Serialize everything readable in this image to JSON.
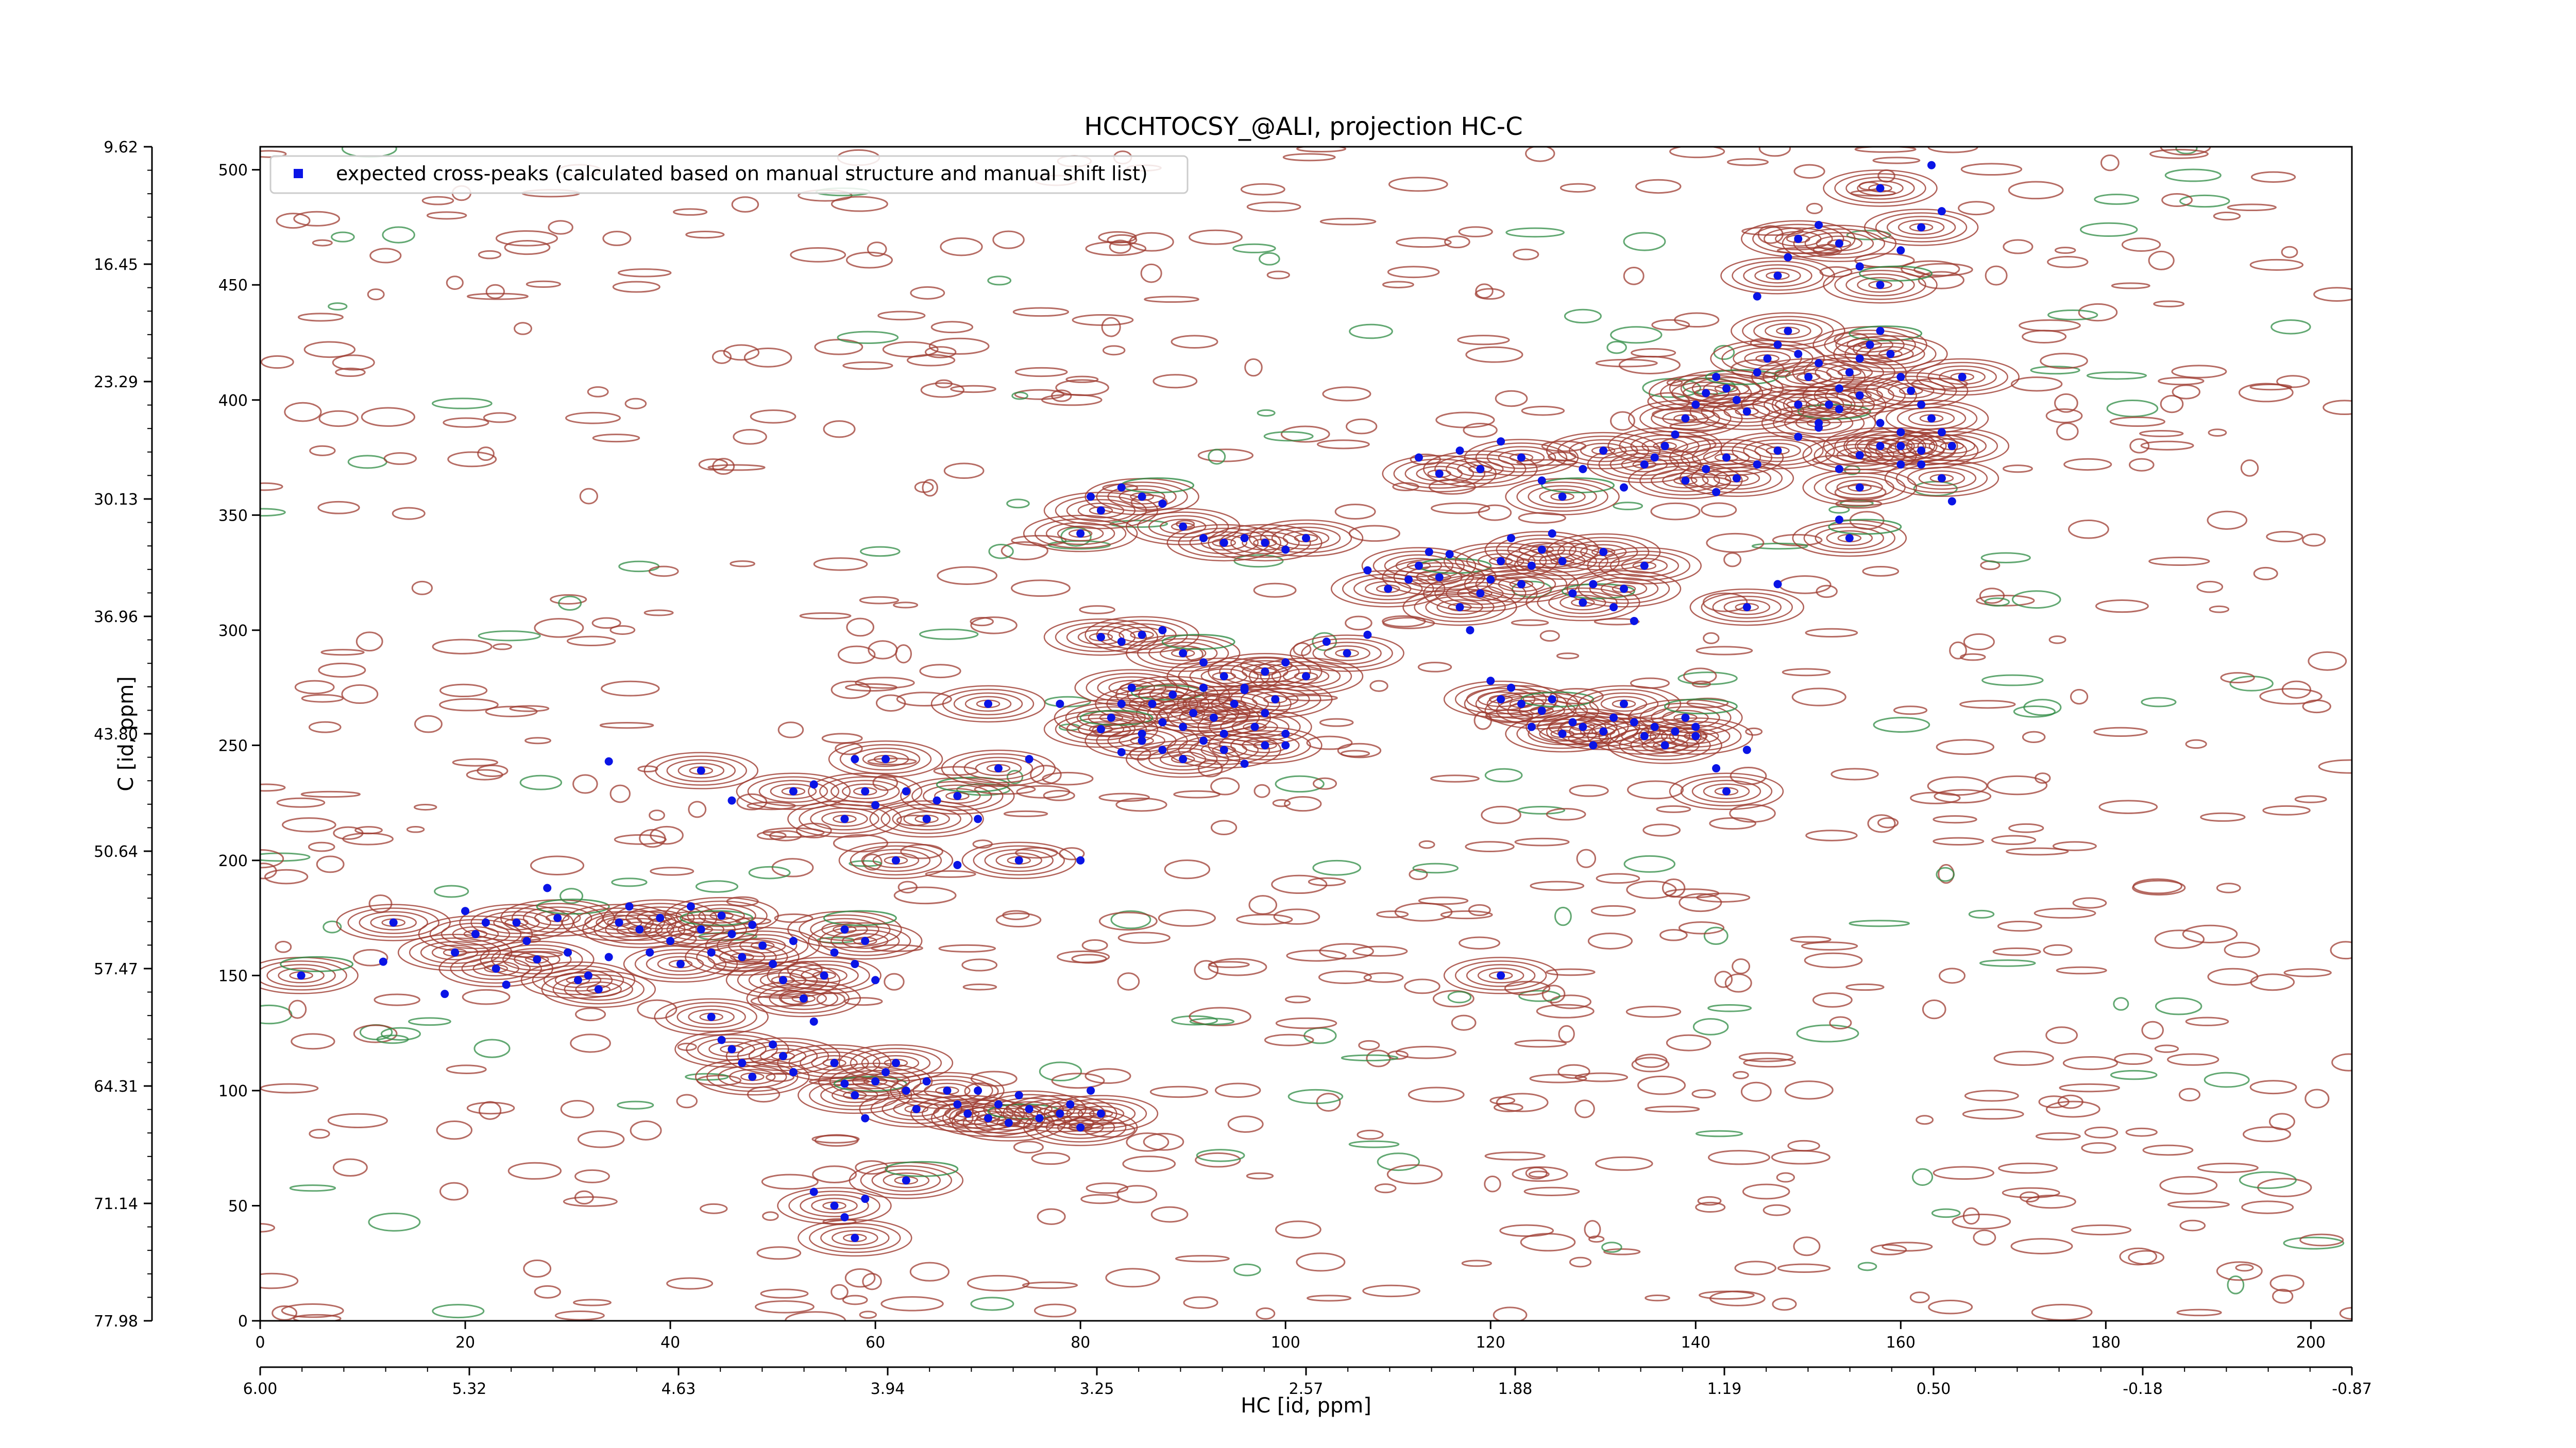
{
  "chart_data": {
    "type": "scatter",
    "title": "HCCHTOCSY_@ALI, projection HC-C",
    "xlabel": "HC [id, ppm]",
    "ylabel": "C [id, ppm]",
    "xlim": [
      0,
      204
    ],
    "ylim": [
      0,
      510
    ],
    "x_ticks": [
      0,
      20,
      40,
      60,
      80,
      100,
      120,
      140,
      160,
      180,
      200
    ],
    "y_ticks": [
      0,
      50,
      100,
      150,
      200,
      250,
      300,
      350,
      400,
      450,
      500
    ],
    "x_ppm_tick_labels": [
      "6.00",
      "5.32",
      "4.63",
      "3.94",
      "3.25",
      "2.57",
      "1.88",
      "1.19",
      "0.50",
      "-0.18",
      "-0.87"
    ],
    "y_ppm_tick_labels": [
      "77.98",
      "71.14",
      "64.31",
      "57.47",
      "50.64",
      "43.80",
      "36.96",
      "30.13",
      "23.29",
      "16.45",
      "9.62"
    ],
    "grid": false,
    "legend_position": "top-left",
    "colors": {
      "positive_contour": "#9e3b30",
      "negative_contour": "#2e8b43",
      "peak_marker": "#0a14e6"
    },
    "series": [
      {
        "name": "expected cross-peaks (calculated based on manual structure and manual shift list)",
        "color": "#0a14e6",
        "points": [
          [
            4,
            150
          ],
          [
            12,
            156
          ],
          [
            13,
            173
          ],
          [
            18,
            142
          ],
          [
            19,
            160
          ],
          [
            20,
            178
          ],
          [
            21,
            168
          ],
          [
            22,
            173
          ],
          [
            23,
            153
          ],
          [
            24,
            146
          ],
          [
            25,
            173
          ],
          [
            26,
            165
          ],
          [
            27,
            157
          ],
          [
            28,
            188
          ],
          [
            29,
            175
          ],
          [
            30,
            160
          ],
          [
            31,
            148
          ],
          [
            32,
            150
          ],
          [
            33,
            144
          ],
          [
            34,
            158
          ],
          [
            35,
            173
          ],
          [
            36,
            180
          ],
          [
            37,
            170
          ],
          [
            38,
            160
          ],
          [
            39,
            175
          ],
          [
            40,
            165
          ],
          [
            41,
            155
          ],
          [
            42,
            180
          ],
          [
            43,
            170
          ],
          [
            44,
            160
          ],
          [
            45,
            176
          ],
          [
            46,
            168
          ],
          [
            47,
            158
          ],
          [
            48,
            172
          ],
          [
            49,
            163
          ],
          [
            50,
            155
          ],
          [
            51,
            148
          ],
          [
            52,
            165
          ],
          [
            53,
            140
          ],
          [
            54,
            130
          ],
          [
            55,
            150
          ],
          [
            56,
            160
          ],
          [
            57,
            170
          ],
          [
            58,
            155
          ],
          [
            59,
            165
          ],
          [
            60,
            148
          ],
          [
            44,
            132
          ],
          [
            45,
            122
          ],
          [
            46,
            118
          ],
          [
            47,
            112
          ],
          [
            48,
            106
          ],
          [
            50,
            120
          ],
          [
            51,
            115
          ],
          [
            52,
            108
          ],
          [
            56,
            112
          ],
          [
            57,
            103
          ],
          [
            58,
            98
          ],
          [
            59,
            88
          ],
          [
            60,
            104
          ],
          [
            61,
            108
          ],
          [
            62,
            112
          ],
          [
            63,
            100
          ],
          [
            64,
            92
          ],
          [
            65,
            104
          ],
          [
            67,
            100
          ],
          [
            68,
            94
          ],
          [
            69,
            90
          ],
          [
            70,
            100
          ],
          [
            71,
            88
          ],
          [
            72,
            94
          ],
          [
            73,
            86
          ],
          [
            74,
            98
          ],
          [
            75,
            92
          ],
          [
            76,
            88
          ],
          [
            78,
            90
          ],
          [
            79,
            94
          ],
          [
            80,
            84
          ],
          [
            81,
            100
          ],
          [
            82,
            90
          ],
          [
            54,
            56
          ],
          [
            56,
            50
          ],
          [
            57,
            45
          ],
          [
            58,
            36
          ],
          [
            59,
            53
          ],
          [
            63,
            61
          ],
          [
            34,
            243
          ],
          [
            43,
            239
          ],
          [
            46,
            226
          ],
          [
            52,
            230
          ],
          [
            54,
            233
          ],
          [
            57,
            218
          ],
          [
            58,
            244
          ],
          [
            59,
            230
          ],
          [
            60,
            224
          ],
          [
            61,
            244
          ],
          [
            63,
            230
          ],
          [
            65,
            218
          ],
          [
            66,
            226
          ],
          [
            68,
            228
          ],
          [
            70,
            218
          ],
          [
            72,
            240
          ],
          [
            75,
            244
          ],
          [
            62,
            200
          ],
          [
            68,
            198
          ],
          [
            74,
            200
          ],
          [
            80,
            200
          ],
          [
            71,
            268
          ],
          [
            78,
            268
          ],
          [
            83,
            262
          ],
          [
            84,
            268
          ],
          [
            85,
            275
          ],
          [
            86,
            255
          ],
          [
            87,
            268
          ],
          [
            88,
            260
          ],
          [
            89,
            272
          ],
          [
            90,
            258
          ],
          [
            91,
            264
          ],
          [
            92,
            275
          ],
          [
            93,
            262
          ],
          [
            94,
            255
          ],
          [
            95,
            268
          ],
          [
            96,
            274
          ],
          [
            97,
            258
          ],
          [
            98,
            264
          ],
          [
            99,
            270
          ],
          [
            100,
            255
          ],
          [
            82,
            257
          ],
          [
            84,
            247
          ],
          [
            86,
            252
          ],
          [
            88,
            248
          ],
          [
            90,
            244
          ],
          [
            92,
            252
          ],
          [
            94,
            248
          ],
          [
            96,
            242
          ],
          [
            98,
            250
          ],
          [
            100,
            250
          ],
          [
            82,
            297
          ],
          [
            84,
            295
          ],
          [
            86,
            298
          ],
          [
            88,
            300
          ],
          [
            90,
            290
          ],
          [
            92,
            286
          ],
          [
            94,
            280
          ],
          [
            96,
            275
          ],
          [
            98,
            282
          ],
          [
            100,
            286
          ],
          [
            102,
            280
          ],
          [
            104,
            295
          ],
          [
            106,
            290
          ],
          [
            108,
            298
          ],
          [
            80,
            342
          ],
          [
            81,
            358
          ],
          [
            82,
            352
          ],
          [
            84,
            362
          ],
          [
            86,
            358
          ],
          [
            88,
            355
          ],
          [
            90,
            345
          ],
          [
            92,
            340
          ],
          [
            94,
            338
          ],
          [
            96,
            340
          ],
          [
            98,
            338
          ],
          [
            100,
            335
          ],
          [
            102,
            340
          ],
          [
            108,
            326
          ],
          [
            110,
            318
          ],
          [
            112,
            322
          ],
          [
            113,
            328
          ],
          [
            114,
            334
          ],
          [
            115,
            323
          ],
          [
            116,
            333
          ],
          [
            117,
            310
          ],
          [
            118,
            300
          ],
          [
            119,
            316
          ],
          [
            120,
            322
          ],
          [
            121,
            330
          ],
          [
            122,
            340
          ],
          [
            123,
            320
          ],
          [
            124,
            328
          ],
          [
            125,
            335
          ],
          [
            126,
            342
          ],
          [
            127,
            330
          ],
          [
            128,
            316
          ],
          [
            129,
            312
          ],
          [
            130,
            320
          ],
          [
            131,
            334
          ],
          [
            132,
            310
          ],
          [
            133,
            318
          ],
          [
            134,
            304
          ],
          [
            135,
            328
          ],
          [
            113,
            375
          ],
          [
            115,
            368
          ],
          [
            117,
            378
          ],
          [
            119,
            370
          ],
          [
            121,
            382
          ],
          [
            123,
            375
          ],
          [
            125,
            365
          ],
          [
            127,
            358
          ],
          [
            129,
            370
          ],
          [
            131,
            378
          ],
          [
            133,
            362
          ],
          [
            135,
            372
          ],
          [
            137,
            380
          ],
          [
            139,
            365
          ],
          [
            141,
            370
          ],
          [
            143,
            375
          ],
          [
            120,
            278
          ],
          [
            121,
            270
          ],
          [
            122,
            275
          ],
          [
            123,
            268
          ],
          [
            124,
            258
          ],
          [
            125,
            265
          ],
          [
            126,
            270
          ],
          [
            127,
            255
          ],
          [
            128,
            260
          ],
          [
            129,
            258
          ],
          [
            130,
            250
          ],
          [
            131,
            256
          ],
          [
            132,
            262
          ],
          [
            133,
            268
          ],
          [
            134,
            260
          ],
          [
            135,
            254
          ],
          [
            136,
            258
          ],
          [
            137,
            250
          ],
          [
            138,
            256
          ],
          [
            139,
            262
          ],
          [
            140,
            258
          ],
          [
            140,
            254
          ],
          [
            142,
            240
          ],
          [
            143,
            230
          ],
          [
            145,
            248
          ],
          [
            121,
            150
          ],
          [
            136,
            375
          ],
          [
            137,
            380
          ],
          [
            138,
            385
          ],
          [
            139,
            392
          ],
          [
            140,
            398
          ],
          [
            141,
            403
          ],
          [
            142,
            410
          ],
          [
            143,
            405
          ],
          [
            144,
            400
          ],
          [
            145,
            395
          ],
          [
            146,
            412
          ],
          [
            147,
            418
          ],
          [
            148,
            424
          ],
          [
            149,
            430
          ],
          [
            150,
            420
          ],
          [
            151,
            410
          ],
          [
            152,
            416
          ],
          [
            153,
            398
          ],
          [
            154,
            405
          ],
          [
            155,
            412
          ],
          [
            156,
            418
          ],
          [
            157,
            424
          ],
          [
            158,
            430
          ],
          [
            159,
            420
          ],
          [
            160,
            410
          ],
          [
            161,
            404
          ],
          [
            162,
            398
          ],
          [
            163,
            392
          ],
          [
            164,
            386
          ],
          [
            165,
            380
          ],
          [
            142,
            360
          ],
          [
            144,
            366
          ],
          [
            146,
            372
          ],
          [
            148,
            378
          ],
          [
            150,
            384
          ],
          [
            152,
            390
          ],
          [
            154,
            396
          ],
          [
            156,
            402
          ],
          [
            158,
            390
          ],
          [
            160,
            380
          ],
          [
            162,
            372
          ],
          [
            164,
            366
          ],
          [
            146,
            445
          ],
          [
            148,
            454
          ],
          [
            149,
            462
          ],
          [
            150,
            470
          ],
          [
            152,
            476
          ],
          [
            154,
            468
          ],
          [
            156,
            458
          ],
          [
            158,
            450
          ],
          [
            160,
            465
          ],
          [
            162,
            475
          ],
          [
            164,
            482
          ],
          [
            158,
            492
          ],
          [
            163,
            502
          ],
          [
            166,
            410
          ],
          [
            154,
            370
          ],
          [
            156,
            362
          ],
          [
            154,
            348
          ],
          [
            158,
            380
          ],
          [
            160,
            372
          ],
          [
            145,
            310
          ],
          [
            148,
            320
          ],
          [
            155,
            340
          ],
          [
            160,
            386
          ],
          [
            162,
            378
          ],
          [
            165,
            356
          ],
          [
            150,
            398
          ],
          [
            152,
            388
          ],
          [
            156,
            376
          ]
        ]
      }
    ]
  }
}
